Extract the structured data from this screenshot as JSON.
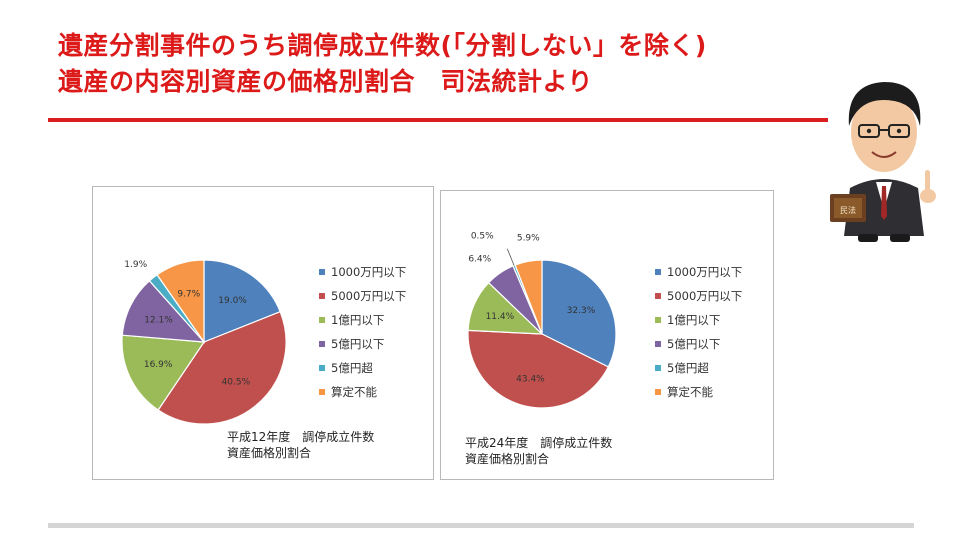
{
  "title": {
    "line1": "遺産分割事件のうち調停成立件数(「分割しない」を除く)",
    "line2": "遺産の内容別資産の価格別割合　司法統計より"
  },
  "presenter": {
    "book_label": "民法"
  },
  "chart_data": [
    {
      "type": "pie",
      "title": "平成12年度 調停成立件数 資産価格別割合",
      "caption": {
        "line1": "平成12年度　調停成立件数",
        "line2": "資産価格別割合"
      },
      "categories": [
        "1000万円以下",
        "5000万円以下",
        "1億円以下",
        "5億円以下",
        "5億円超",
        "算定不能"
      ],
      "values": [
        19.0,
        40.5,
        16.9,
        12.1,
        1.9,
        9.7
      ],
      "labels": [
        "19.0%",
        "40.5%",
        "16.9%",
        "12.1%",
        "1.9%",
        "9.7%"
      ],
      "colors": [
        "#4f81bd",
        "#c0504d",
        "#9bbb59",
        "#8064a2",
        "#4bacc6",
        "#f79646"
      ],
      "legend": "right"
    },
    {
      "type": "pie",
      "title": "平成24年度 調停成立件数 資産価格別割合",
      "caption": {
        "line1": "平成24年度　調停成立件数",
        "line2": "資産価格別割合"
      },
      "categories": [
        "1000万円以下",
        "5000万円以下",
        "1億円以下",
        "5億円以下",
        "5億円超",
        "算定不能"
      ],
      "values": [
        32.3,
        43.4,
        11.4,
        6.4,
        0.5,
        5.9
      ],
      "labels": [
        "32.3%",
        "43.4%",
        "11.4%",
        "6.4%",
        "0.5%",
        "5.9%"
      ],
      "colors": [
        "#4f81bd",
        "#c0504d",
        "#9bbb59",
        "#8064a2",
        "#4bacc6",
        "#f79646"
      ],
      "legend": "right"
    }
  ]
}
